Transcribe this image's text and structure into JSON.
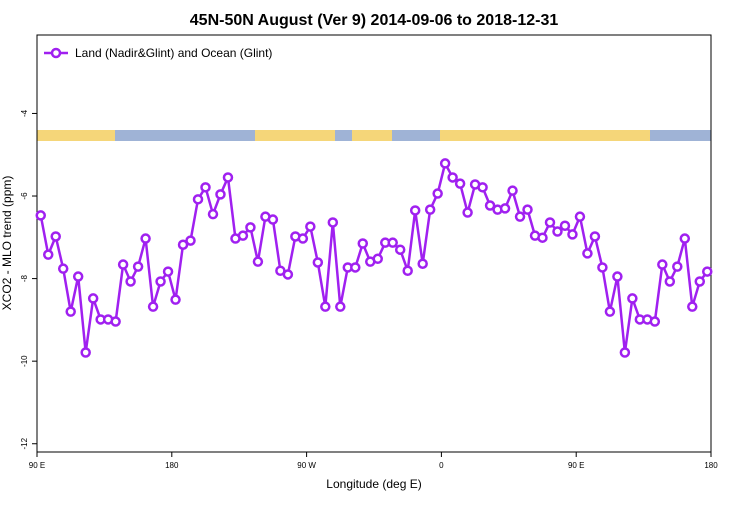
{
  "chart_data": {
    "type": "line",
    "title": "45N-50N August (Ver 9)   2014-09-06 to 2018-12-31",
    "x_label": "Longitude (deg E)",
    "y_label": "XCO2 - MLO trend (ppm)",
    "x": [
      92.5,
      97.5,
      102.5,
      107.5,
      112.5,
      117.5,
      122.5,
      127.5,
      132.5,
      137.5,
      142.5,
      147.5,
      152.5,
      157.5,
      162.5,
      167.5,
      172.5,
      177.5,
      182.5,
      187.5,
      192.5,
      197.5,
      202.5,
      207.5,
      212.5,
      217.5,
      222.5,
      227.5,
      232.5,
      237.5,
      242.5,
      247.5,
      252.5,
      257.5,
      262.5,
      267.5,
      272.5,
      277.5,
      282.5,
      287.5,
      292.5,
      297.5,
      302.5,
      307.5,
      312.5,
      317.5,
      322.5,
      327.5,
      332.5,
      337.5,
      342.5,
      347.5,
      352.5,
      357.5,
      362.5,
      367.5,
      372.5,
      377.5,
      382.5,
      387.5,
      392.5,
      397.5,
      402.5,
      407.5,
      412.5,
      417.5,
      422.5,
      427.5,
      432.5,
      437.5,
      442.5,
      447.5,
      452.5,
      457.5,
      462.5,
      467.5,
      472.5,
      477.5,
      482.5,
      487.5,
      492.5,
      497.5,
      502.5,
      507.5,
      512.5,
      517.5,
      522.5,
      527.5,
      532.5,
      537.5
    ],
    "series": [
      {
        "name": "Land (Nadir&Glint) and Ocean (Glint)",
        "color": "#a020f0",
        "values": [
          -6.47,
          -7.42,
          -6.98,
          -7.76,
          -8.8,
          -7.95,
          -9.79,
          -8.48,
          -8.99,
          -8.99,
          -9.04,
          -7.66,
          -8.07,
          -7.71,
          -7.03,
          -8.68,
          -8.07,
          -7.83,
          -8.51,
          -7.18,
          -7.08,
          -6.08,
          -5.79,
          -6.44,
          -5.96,
          -5.55,
          -7.03,
          -6.96,
          -6.76,
          -7.59,
          -6.5,
          -6.57,
          -7.81,
          -7.9,
          -6.98,
          -7.03,
          -6.74,
          -7.61,
          -8.68,
          -6.64,
          -8.68,
          -7.73,
          -7.73,
          -7.15,
          -7.59,
          -7.52,
          -7.13,
          -7.13,
          -7.3,
          -7.81,
          -6.35,
          -7.64,
          -6.33,
          -5.94,
          -5.21,
          -5.55,
          -5.7,
          -6.4,
          -5.72,
          -5.79,
          -6.23,
          -6.33,
          -6.3,
          -5.87,
          -6.5,
          -6.33,
          -6.96,
          -7.01,
          -6.64,
          -6.86,
          -6.72,
          -6.93,
          -6.5,
          -7.39,
          -6.98,
          -7.73,
          -8.8,
          -7.95,
          -9.79,
          -8.48,
          -8.99,
          -8.99,
          -9.04,
          -7.66,
          -8.07,
          -7.71,
          -7.03,
          -8.68,
          -8.07,
          -7.83
        ]
      }
    ],
    "xlim": [
      90,
      540
    ],
    "xticks": [
      {
        "value": 90,
        "label": "90 E"
      },
      180,
      {
        "value": 270,
        "label": "90 W"
      },
      {
        "value": 360,
        "label": "0"
      },
      {
        "value": 450,
        "label": "90 E"
      },
      {
        "value": 540,
        "label": "180"
      }
    ],
    "ylim": [
      -12.2,
      -2.1
    ],
    "yticks": [
      -4,
      -6,
      -8,
      -10,
      -12
    ],
    "legend": "top-left",
    "grid": false
  }
}
